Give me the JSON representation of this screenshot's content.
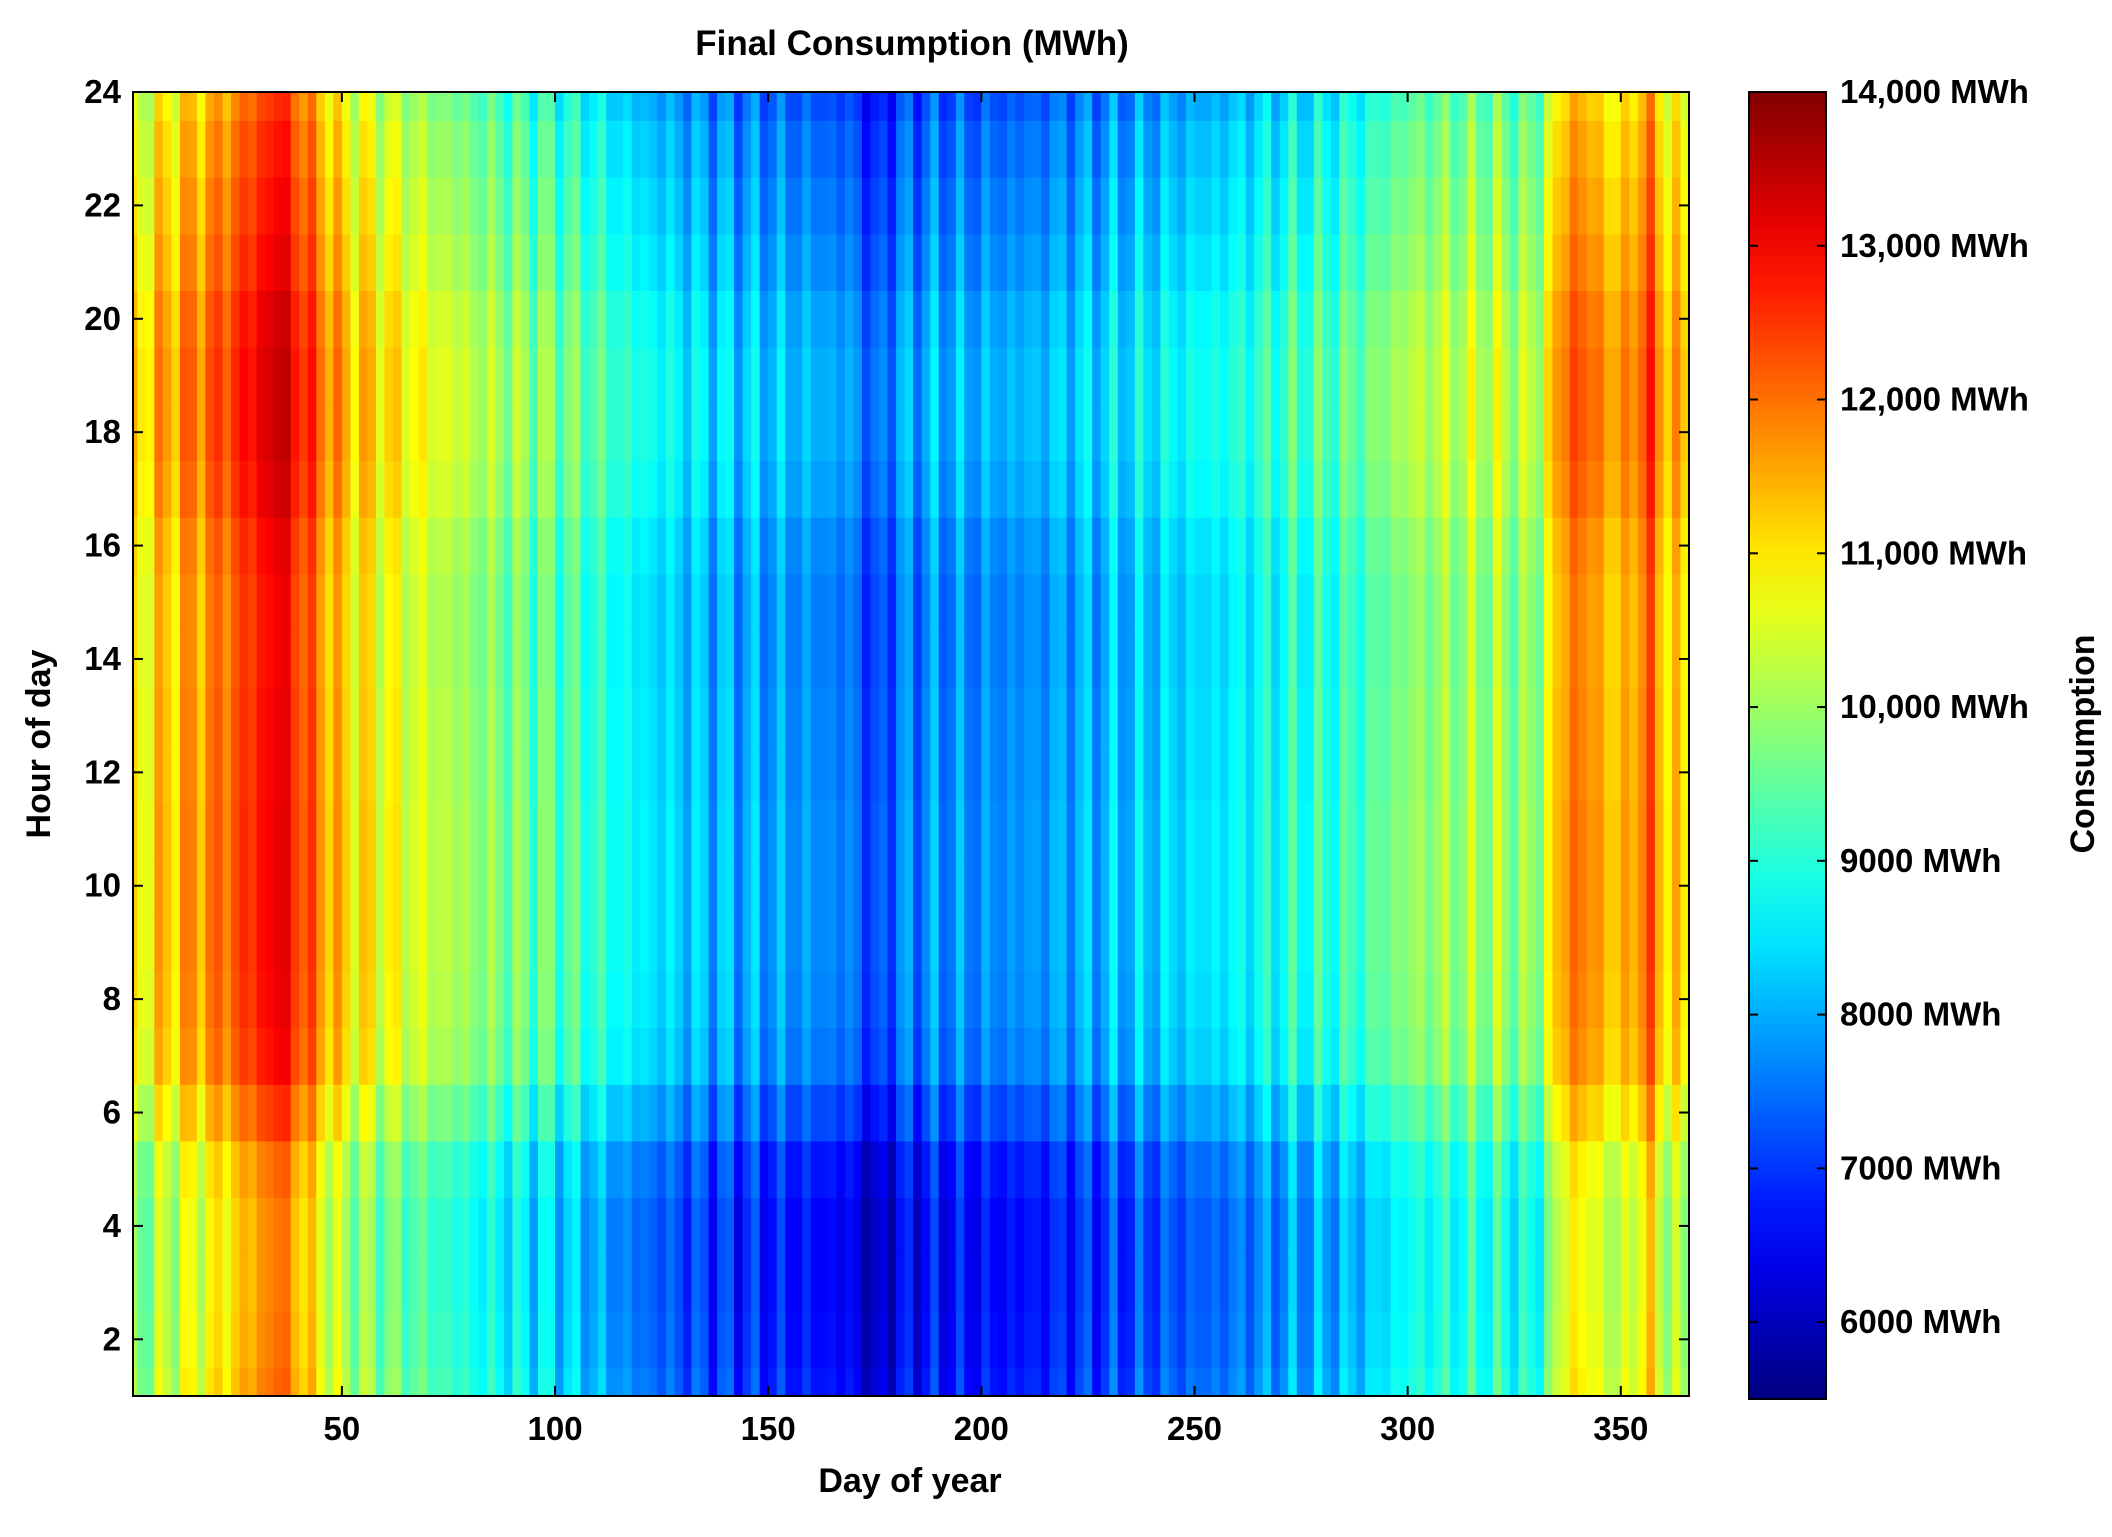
{
  "chart_data": {
    "type": "heatmap",
    "title": "Final Consumption (MWh)",
    "xlabel": "Day of year",
    "ylabel": "Hour of day",
    "colorbar_label": "Consumption",
    "xlim": [
      1,
      366
    ],
    "ylim": [
      1,
      24
    ],
    "xticks": [
      50,
      100,
      150,
      200,
      250,
      300,
      350
    ],
    "yticks": [
      2,
      4,
      6,
      8,
      10,
      12,
      14,
      16,
      18,
      20,
      22,
      24
    ],
    "colorbar_range": [
      5500,
      14000
    ],
    "colorbar_ticks": [
      {
        "value": 6000,
        "label": "6000 MWh"
      },
      {
        "value": 7000,
        "label": "7000 MWh"
      },
      {
        "value": 8000,
        "label": "8000 MWh"
      },
      {
        "value": 9000,
        "label": "9000 MWh"
      },
      {
        "value": 10000,
        "label": "10,000 MWh"
      },
      {
        "value": 11000,
        "label": "11,000 MWh"
      },
      {
        "value": 12000,
        "label": "12,000 MWh"
      },
      {
        "value": 13000,
        "label": "13,000 MWh"
      },
      {
        "value": 14000,
        "label": "14,000 MWh"
      }
    ],
    "colormap": "jet",
    "day_profile": {
      "days": [
        1,
        10,
        20,
        30,
        35,
        40,
        50,
        60,
        70,
        80,
        90,
        100,
        110,
        120,
        130,
        140,
        150,
        160,
        170,
        175,
        180,
        190,
        200,
        210,
        220,
        230,
        240,
        250,
        260,
        270,
        280,
        290,
        300,
        310,
        320,
        330,
        338,
        345,
        350,
        356,
        362,
        366
      ],
      "base_mwh": [
        10400,
        11100,
        11600,
        12400,
        12900,
        12200,
        10900,
        10500,
        10100,
        9700,
        9400,
        9200,
        8800,
        8300,
        8000,
        7800,
        7650,
        7500,
        7300,
        6700,
        7300,
        7500,
        7450,
        7500,
        7700,
        7850,
        8000,
        8150,
        8350,
        8600,
        8750,
        9000,
        9600,
        9700,
        9800,
        9500,
        11800,
        11300,
        10900,
        11900,
        10800,
        10600
      ]
    },
    "hour_profile": {
      "hours": [
        1,
        2,
        3,
        4,
        5,
        6,
        7,
        8,
        9,
        10,
        11,
        12,
        13,
        14,
        15,
        16,
        17,
        18,
        19,
        20,
        21,
        22,
        23,
        24
      ],
      "offset_mwh": [
        -700,
        -800,
        -850,
        -850,
        -700,
        -250,
        150,
        250,
        300,
        300,
        300,
        250,
        250,
        200,
        200,
        300,
        500,
        600,
        600,
        500,
        300,
        150,
        0,
        -200
      ]
    }
  }
}
